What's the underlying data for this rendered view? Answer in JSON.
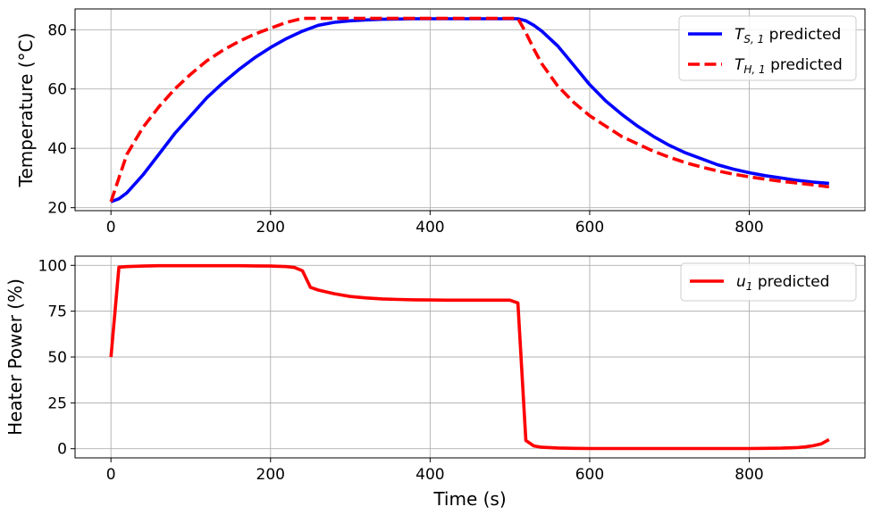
{
  "chart_data": [
    {
      "type": "line",
      "xlabel": "",
      "ylabel": "Temperature (°C)",
      "xlim": [
        -45,
        945
      ],
      "ylim": [
        19,
        87
      ],
      "xticks": [
        0,
        200,
        400,
        600,
        800
      ],
      "yticks": [
        20,
        40,
        60,
        80
      ],
      "xtick_labels": [
        "0",
        "200",
        "400",
        "600",
        "800"
      ],
      "ytick_labels": [
        "20",
        "40",
        "60",
        "80"
      ],
      "grid": true,
      "legend_position": "top-right",
      "series": [
        {
          "name": "T_S,1 predicted",
          "legend_main": "T",
          "legend_sub": "S, 1",
          "legend_suffix": "predicted",
          "color": "#0000ff",
          "dash": "solid",
          "x": [
            0,
            10,
            20,
            40,
            60,
            80,
            100,
            120,
            140,
            160,
            180,
            200,
            220,
            240,
            260,
            280,
            300,
            320,
            340,
            360,
            380,
            400,
            420,
            440,
            460,
            480,
            500,
            510,
            520,
            530,
            540,
            560,
            580,
            600,
            620,
            640,
            660,
            680,
            700,
            720,
            740,
            760,
            780,
            800,
            820,
            840,
            860,
            880,
            900
          ],
          "y": [
            22,
            23,
            25,
            31,
            38,
            45,
            51,
            57,
            62,
            66.5,
            70.5,
            74,
            77,
            79.5,
            81.5,
            82.5,
            83,
            83.3,
            83.5,
            83.6,
            83.7,
            83.7,
            83.7,
            83.7,
            83.7,
            83.7,
            83.7,
            83.7,
            83,
            81.5,
            79.5,
            74.5,
            68,
            61.5,
            56,
            51.5,
            47.5,
            44,
            41,
            38.5,
            36.5,
            34.5,
            33,
            31.8,
            30.8,
            30,
            29.2,
            28.6,
            28.2
          ]
        },
        {
          "name": "T_H,1 predicted",
          "legend_main": "T",
          "legend_sub": "H, 1",
          "legend_suffix": "predicted",
          "color": "#ff0000",
          "dash": "dashed",
          "x": [
            0,
            10,
            20,
            40,
            60,
            80,
            100,
            120,
            140,
            160,
            180,
            200,
            220,
            240,
            260,
            280,
            300,
            320,
            340,
            360,
            380,
            400,
            420,
            440,
            460,
            480,
            500,
            510,
            520,
            530,
            540,
            560,
            580,
            600,
            620,
            640,
            660,
            680,
            700,
            720,
            740,
            760,
            780,
            800,
            820,
            840,
            860,
            880,
            900
          ],
          "y": [
            22,
            30,
            38,
            47,
            54,
            60,
            65,
            69.5,
            73,
            76,
            78.5,
            80.5,
            82.5,
            83.8,
            83.8,
            83.8,
            83.8,
            83.8,
            83.8,
            83.8,
            83.8,
            83.8,
            83.8,
            83.8,
            83.8,
            83.8,
            83.8,
            83.8,
            79,
            73.5,
            68.5,
            61,
            55.5,
            51,
            47.5,
            44,
            41.5,
            39,
            37,
            35.2,
            33.7,
            32.4,
            31.3,
            30.4,
            29.6,
            28.9,
            28.3,
            27.7,
            27
          ]
        }
      ]
    },
    {
      "type": "line",
      "xlabel": "Time (s)",
      "ylabel": "Heater Power (%)",
      "xlim": [
        -45,
        945
      ],
      "ylim": [
        -5,
        105
      ],
      "xticks": [
        0,
        200,
        400,
        600,
        800
      ],
      "yticks": [
        0,
        25,
        50,
        75,
        100
      ],
      "xtick_labels": [
        "0",
        "200",
        "400",
        "600",
        "800"
      ],
      "ytick_labels": [
        "0",
        "25",
        "50",
        "75",
        "100"
      ],
      "grid": true,
      "legend_position": "top-right",
      "series": [
        {
          "name": "u_1 predicted",
          "legend_main": "u",
          "legend_sub": "1",
          "legend_suffix": "predicted",
          "color": "#ff0000",
          "dash": "solid",
          "x": [
            0,
            10,
            20,
            40,
            60,
            80,
            100,
            120,
            140,
            160,
            180,
            200,
            220,
            230,
            240,
            250,
            260,
            280,
            300,
            320,
            340,
            360,
            380,
            400,
            420,
            440,
            460,
            480,
            500,
            510,
            520,
            530,
            540,
            560,
            580,
            600,
            620,
            640,
            660,
            680,
            700,
            720,
            740,
            760,
            780,
            800,
            820,
            840,
            860,
            870,
            880,
            890,
            900
          ],
          "y": [
            50,
            99,
            99.3,
            99.6,
            99.8,
            99.8,
            99.8,
            99.8,
            99.8,
            99.8,
            99.7,
            99.6,
            99.3,
            98.8,
            97,
            88,
            86.5,
            84.5,
            83,
            82.2,
            81.7,
            81.4,
            81.2,
            81.1,
            81,
            81,
            81,
            81,
            81,
            79.5,
            4.5,
            1.5,
            0.8,
            0.4,
            0.2,
            0.1,
            0.1,
            0.1,
            0.1,
            0.1,
            0.1,
            0.1,
            0.1,
            0.1,
            0.1,
            0.1,
            0.2,
            0.3,
            0.6,
            1,
            1.6,
            2.6,
            5
          ]
        }
      ]
    }
  ]
}
